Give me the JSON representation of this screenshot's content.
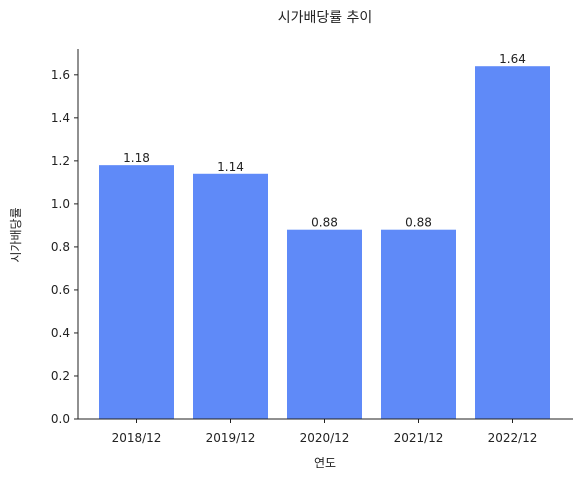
{
  "chart_data": {
    "type": "bar",
    "title": "시가배당률 추이",
    "xlabel": "연도",
    "ylabel": "시가배당률",
    "categories": [
      "2018/12",
      "2019/12",
      "2020/12",
      "2021/12",
      "2022/12"
    ],
    "values": [
      1.18,
      1.14,
      0.88,
      0.88,
      1.64
    ],
    "value_labels": [
      "1.18",
      "1.14",
      "0.88",
      "0.88",
      "1.64"
    ],
    "ylim": [
      0,
      1.72
    ],
    "yticks": [
      0.0,
      0.2,
      0.4,
      0.6,
      0.8,
      1.0,
      1.2,
      1.4,
      1.6
    ],
    "ytick_labels": [
      "0.0",
      "0.2",
      "0.4",
      "0.6",
      "0.8",
      "1.0",
      "1.2",
      "1.4",
      "1.6"
    ],
    "bar_color": "#5F8AF8",
    "grid": false,
    "legend": "none"
  }
}
